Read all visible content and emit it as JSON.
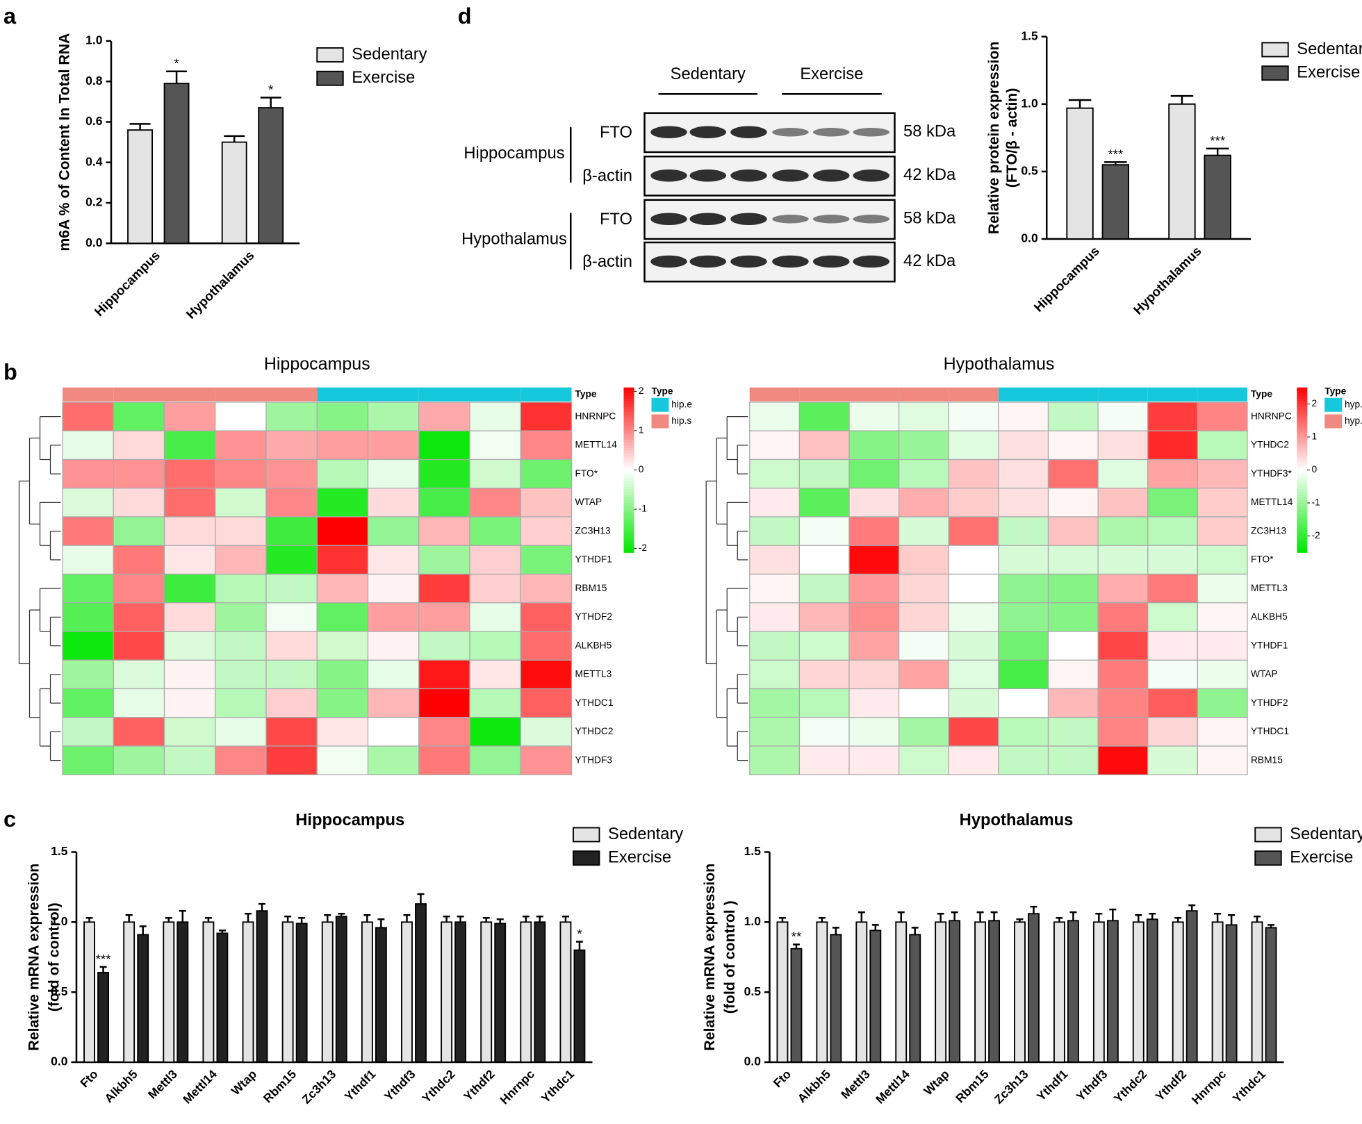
{
  "chart_data": [
    {
      "type": "bar",
      "panel": "a",
      "ylabel": "m6A % of Content In Total RNA",
      "categories": [
        "Hippocampus",
        "Hypothalamus"
      ],
      "series": [
        {
          "name": "Sedentary",
          "color": "#e4e4e4",
          "values": [
            0.56,
            0.5
          ],
          "errors": [
            0.03,
            0.03
          ],
          "annotations": [
            null,
            null
          ]
        },
        {
          "name": "Exercise",
          "color": "#555555",
          "values": [
            0.79,
            0.67
          ],
          "errors": [
            0.06,
            0.05
          ],
          "annotations": [
            "*",
            "*"
          ]
        }
      ],
      "ylim": [
        0,
        1.0
      ],
      "yticks": [
        {
          "value": 0,
          "label": "0.0"
        },
        0.2,
        0.4,
        0.6,
        0.8,
        {
          "value": 1,
          "label": "1.0"
        }
      ]
    },
    {
      "type": "bar",
      "ylabel": [
        "Relative  protein expression",
        "(FTO/β - actin)"
      ],
      "categories": [
        "Hippocampus",
        "Hypothalamus"
      ],
      "series": [
        {
          "name": "Sedentary",
          "color": "#e4e4e4",
          "values": [
            0.97,
            1.0
          ],
          "errors": [
            0.06,
            0.06
          ],
          "annotations": [
            null,
            null
          ]
        },
        {
          "name": "Exercise",
          "color": "#555555",
          "values": [
            0.55,
            0.62
          ],
          "errors": [
            0.02,
            0.05
          ],
          "annotations": [
            "***",
            "***"
          ]
        }
      ],
      "ylim": [
        0,
        1.5
      ],
      "yticks": [
        {
          "value": 0,
          "label": "0.0"
        },
        0.5,
        {
          "value": 1,
          "label": "1.0"
        },
        1.5
      ]
    },
    {
      "type": "heatmap",
      "panel": "b",
      "title": "Hippocampus",
      "annotation_title": "Type",
      "groups": [
        {
          "name": "hip.e",
          "color": "#16c8dc"
        },
        {
          "name": "hip.s",
          "color": "#f08a80"
        }
      ],
      "column_types": [
        "hip.s",
        "hip.s",
        "hip.s",
        "hip.s",
        "hip.s",
        "hip.e",
        "hip.e",
        "hip.e",
        "hip.e",
        "hip.e"
      ],
      "rows": [
        "HNRNPC",
        "METTL14",
        "FTO*",
        "WTAP",
        "ZC3H13",
        "YTHDF1",
        "RBM15",
        "YTHDF2",
        "ALKBH5",
        "METTL3",
        "YTHDC1",
        "YTHDC2",
        "YTHDF3"
      ],
      "values": [
        [
          1.2,
          -1.3,
          0.8,
          0,
          -0.8,
          -1.0,
          -0.7,
          0.7,
          -0.2,
          1.7
        ],
        [
          -0.2,
          0.3,
          -1.5,
          0.9,
          0.7,
          0.8,
          0.8,
          -2.0,
          -0.1,
          1.0
        ],
        [
          0.9,
          0.9,
          1.2,
          1.0,
          0.9,
          -0.6,
          -0.2,
          -1.8,
          -0.4,
          -1.2
        ],
        [
          -0.3,
          0.3,
          1.2,
          -0.4,
          1.0,
          -1.8,
          0.3,
          -1.5,
          1.0,
          0.5
        ],
        [
          1.1,
          -0.9,
          0.3,
          0.3,
          -1.6,
          2.1,
          -0.9,
          0.6,
          -1.1,
          0.4
        ],
        [
          -0.2,
          1.1,
          0.2,
          0.6,
          -1.8,
          1.7,
          0.2,
          -0.8,
          0.4,
          -1.1
        ],
        [
          -1.3,
          1.0,
          -1.6,
          -0.6,
          -0.5,
          0.6,
          0.1,
          1.6,
          0.4,
          0.6
        ],
        [
          -1.4,
          1.3,
          0.3,
          -0.8,
          -0.1,
          -1.3,
          0.8,
          0.8,
          -0.2,
          1.3
        ],
        [
          -2.0,
          1.5,
          -0.3,
          -0.5,
          0.3,
          -0.4,
          0.1,
          -0.5,
          -0.6,
          1.2
        ],
        [
          -0.8,
          -0.3,
          0.1,
          -0.5,
          -0.5,
          -1.0,
          -0.2,
          1.9,
          0.2,
          2.0
        ],
        [
          -1.3,
          -0.2,
          0.1,
          -0.6,
          0.4,
          -1.0,
          0.6,
          2.1,
          -0.6,
          1.3
        ],
        [
          -0.5,
          1.3,
          -0.4,
          -0.2,
          1.5,
          0.2,
          0,
          1.0,
          -2.0,
          -0.3
        ],
        [
          -1.2,
          -0.8,
          -0.5,
          1.0,
          1.6,
          -0.1,
          -0.7,
          1.1,
          -0.9,
          0.9
        ]
      ],
      "colorscale": [
        "#00e600",
        "#ffffff",
        "#ff0000"
      ],
      "zlim": [
        -2.1,
        2.1
      ],
      "zticks": [
        -2,
        -1,
        0,
        1,
        2
      ]
    },
    {
      "type": "heatmap",
      "title": "Hypothalamus",
      "annotation_title": "Type",
      "groups": [
        {
          "name": "hyp.e",
          "color": "#16c8dc"
        },
        {
          "name": "hyp.s",
          "color": "#f08a80"
        }
      ],
      "column_types": [
        "hyp.s",
        "hyp.s",
        "hyp.s",
        "hyp.s",
        "hyp.s",
        "hyp.e",
        "hyp.e",
        "hyp.e",
        "hyp.e",
        "hyp.e"
      ],
      "rows": [
        "HNRNPC",
        "YTHDC2",
        "YTHDF3*",
        "METTL14",
        "ZC3H13",
        "FTO*",
        "METTL3",
        "ALKBH5",
        "YTHDF1",
        "WTAP",
        "YTHDF2",
        "YTHDC1",
        "RBM15"
      ],
      "values": [
        [
          -0.2,
          -1.6,
          -0.2,
          -0.3,
          -0.1,
          0.1,
          -0.6,
          -0.1,
          1.9,
          1.2
        ],
        [
          0.1,
          0.6,
          -1.2,
          -1.0,
          -0.3,
          0.3,
          0.1,
          0.3,
          2.1,
          -0.7
        ],
        [
          -0.5,
          -0.6,
          -1.4,
          -0.7,
          0.6,
          0.3,
          1.4,
          -0.3,
          0.9,
          0.7
        ],
        [
          0.2,
          -1.6,
          0.3,
          0.8,
          0.5,
          0.3,
          0.1,
          0.6,
          -1.3,
          0.5
        ],
        [
          -0.6,
          -0.1,
          1.3,
          -0.4,
          1.4,
          -0.6,
          0.6,
          -0.8,
          -0.7,
          0.5
        ],
        [
          0.3,
          0,
          2.4,
          0.5,
          0,
          -0.4,
          -0.4,
          -0.4,
          -0.4,
          -0.5
        ],
        [
          0.1,
          -0.6,
          1.0,
          0.4,
          0,
          -1.1,
          -1.2,
          0.8,
          1.3,
          -0.2
        ],
        [
          0.2,
          0.7,
          1.1,
          0.4,
          -0.2,
          -1.1,
          -1.2,
          1.3,
          -0.5,
          0.1
        ],
        [
          -0.6,
          -0.5,
          0.9,
          -0.1,
          -0.4,
          -1.4,
          0,
          1.8,
          0.2,
          0.2
        ],
        [
          -0.5,
          0.4,
          0.4,
          0.9,
          -0.3,
          -1.8,
          0.1,
          1.3,
          -0.1,
          -0.2
        ],
        [
          -0.9,
          -0.7,
          0.2,
          0,
          -0.4,
          0,
          0.7,
          1.2,
          1.6,
          -1.1
        ],
        [
          -0.8,
          -0.1,
          -0.2,
          -0.9,
          1.8,
          -0.7,
          -0.6,
          1.2,
          0.4,
          0.1
        ],
        [
          -0.8,
          0.2,
          0.2,
          -0.5,
          0.2,
          -0.6,
          -0.6,
          2.4,
          -0.4,
          0.1
        ]
      ],
      "colorscale": [
        "#00e600",
        "#ffffff",
        "#ff0000"
      ],
      "zlim": [
        -2.5,
        2.5
      ],
      "zticks": [
        -2,
        -1,
        0,
        1,
        2
      ]
    },
    {
      "type": "bar",
      "panel": "c",
      "title": "Hippocampus",
      "ylabel": [
        "Relative mRNA expression",
        "(fold of control)"
      ],
      "categories": [
        "Fto",
        "Alkbh5",
        "Mettl3",
        "Mettl14",
        "Wtap",
        "Rbm15",
        "Zc3h13",
        "Ythdf1",
        "Ythdf3",
        "Ythdc2",
        "Ythdf2",
        "Hnrnpc",
        "Ythdc1"
      ],
      "series": [
        {
          "name": "Sedentary",
          "color": "#e4e4e4",
          "values": [
            1.0,
            1.0,
            1.0,
            1.0,
            1.0,
            1.0,
            1.0,
            1.0,
            1.0,
            1.0,
            1.0,
            1.0,
            1.0
          ],
          "errors": [
            0.03,
            0.05,
            0.03,
            0.03,
            0.06,
            0.04,
            0.05,
            0.05,
            0.05,
            0.04,
            0.03,
            0.04,
            0.04
          ],
          "annotations": [
            null,
            null,
            null,
            null,
            null,
            null,
            null,
            null,
            null,
            null,
            null,
            null,
            null
          ]
        },
        {
          "name": "Exercise",
          "color": "#222222",
          "values": [
            0.64,
            0.91,
            1.0,
            0.92,
            1.08,
            0.99,
            1.04,
            0.96,
            1.13,
            1.0,
            0.99,
            1.0,
            0.8
          ],
          "errors": [
            0.04,
            0.06,
            0.08,
            0.02,
            0.05,
            0.04,
            0.02,
            0.06,
            0.07,
            0.04,
            0.03,
            0.04,
            0.06
          ],
          "annotations": [
            "***",
            null,
            null,
            null,
            null,
            null,
            null,
            null,
            null,
            null,
            null,
            null,
            "*"
          ]
        }
      ],
      "ylim": [
        0,
        1.5
      ],
      "yticks": [
        {
          "value": 0,
          "label": "0.0"
        },
        0.5,
        {
          "value": 1,
          "label": "1.0"
        },
        1.5
      ]
    },
    {
      "type": "bar",
      "title": "Hypothalamus",
      "ylabel": [
        "Relative mRNA expression",
        "(fold of control )"
      ],
      "categories": [
        "Fto",
        "Alkbh5",
        "Mettl3",
        "Mettl14",
        "Wtap",
        "Rbm15",
        "Zc3h13",
        "Ythdf1",
        "Ythdf3",
        "Ythdc2",
        "Ythdf2",
        "Hnrnpc",
        "Ythdc1"
      ],
      "series": [
        {
          "name": "Sedentary",
          "color": "#e4e4e4",
          "values": [
            1.0,
            1.0,
            1.0,
            1.0,
            1.0,
            1.0,
            1.0,
            1.0,
            1.0,
            1.0,
            1.0,
            1.0,
            1.0
          ],
          "errors": [
            0.03,
            0.03,
            0.07,
            0.07,
            0.06,
            0.07,
            0.02,
            0.03,
            0.06,
            0.05,
            0.03,
            0.06,
            0.04
          ],
          "annotations": [
            null,
            null,
            null,
            null,
            null,
            null,
            null,
            null,
            null,
            null,
            null,
            null,
            null
          ]
        },
        {
          "name": "Exercise",
          "color": "#555555",
          "values": [
            0.81,
            0.91,
            0.94,
            0.91,
            1.01,
            1.01,
            1.06,
            1.01,
            1.01,
            1.02,
            1.08,
            0.98,
            0.96
          ],
          "errors": [
            0.03,
            0.05,
            0.04,
            0.05,
            0.06,
            0.06,
            0.05,
            0.06,
            0.08,
            0.04,
            0.04,
            0.07,
            0.02
          ],
          "annotations": [
            "**",
            null,
            null,
            null,
            null,
            null,
            null,
            null,
            null,
            null,
            null,
            null,
            null
          ]
        }
      ],
      "ylim": [
        0,
        1.5
      ],
      "yticks": [
        {
          "value": 0,
          "label": "0.0"
        },
        0.5,
        {
          "value": 1,
          "label": "1.0"
        },
        1.5
      ]
    }
  ],
  "blot": {
    "panel": "d",
    "groups": [
      "Sedentary",
      "Exercise"
    ],
    "tissues": [
      "Hippocampus",
      "Hypothalamus"
    ],
    "rows": [
      {
        "label": "FTO",
        "size": "58 kDa"
      },
      {
        "label": "β-actin",
        "size": "42 kDa"
      },
      {
        "label": "FTO",
        "size": "58 kDa"
      },
      {
        "label": "β-actin",
        "size": "42 kDa"
      }
    ]
  }
}
